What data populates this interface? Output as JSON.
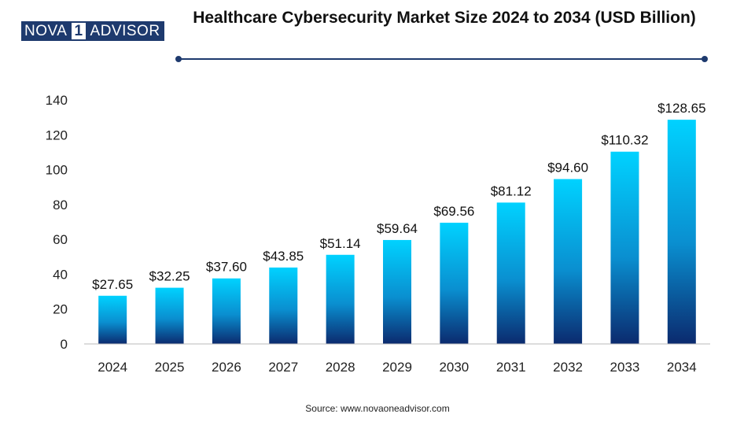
{
  "logo": {
    "left": "NOVA",
    "middle": "1",
    "right": "ADVISOR"
  },
  "source": "Source: www.novaoneadvisor.com",
  "colors": {
    "bar_top": "#00d2ff",
    "bar_mid": "#0a8fd0",
    "bar_bottom": "#0b2a6e",
    "header_line": "#1e3a6e"
  },
  "chart_data": {
    "type": "bar",
    "title": "Healthcare Cybersecurity Market Size 2024 to 2034 (USD Billion)",
    "categories": [
      "2024",
      "2025",
      "2026",
      "2027",
      "2028",
      "2029",
      "2030",
      "2031",
      "2032",
      "2033",
      "2034"
    ],
    "values": [
      27.65,
      32.25,
      37.6,
      43.85,
      51.14,
      59.64,
      69.56,
      81.12,
      94.6,
      110.32,
      128.65
    ],
    "value_labels": [
      "$27.65",
      "$32.25",
      "$37.60",
      "$43.85",
      "$51.14",
      "$59.64",
      "$69.56",
      "$81.12",
      "$94.60",
      "$110.32",
      "$128.65"
    ],
    "xlabel": "",
    "ylabel": "",
    "ylim": [
      0,
      140
    ],
    "yticks": [
      0,
      20,
      40,
      60,
      80,
      100,
      120,
      140
    ],
    "grid": false,
    "legend": "none"
  }
}
